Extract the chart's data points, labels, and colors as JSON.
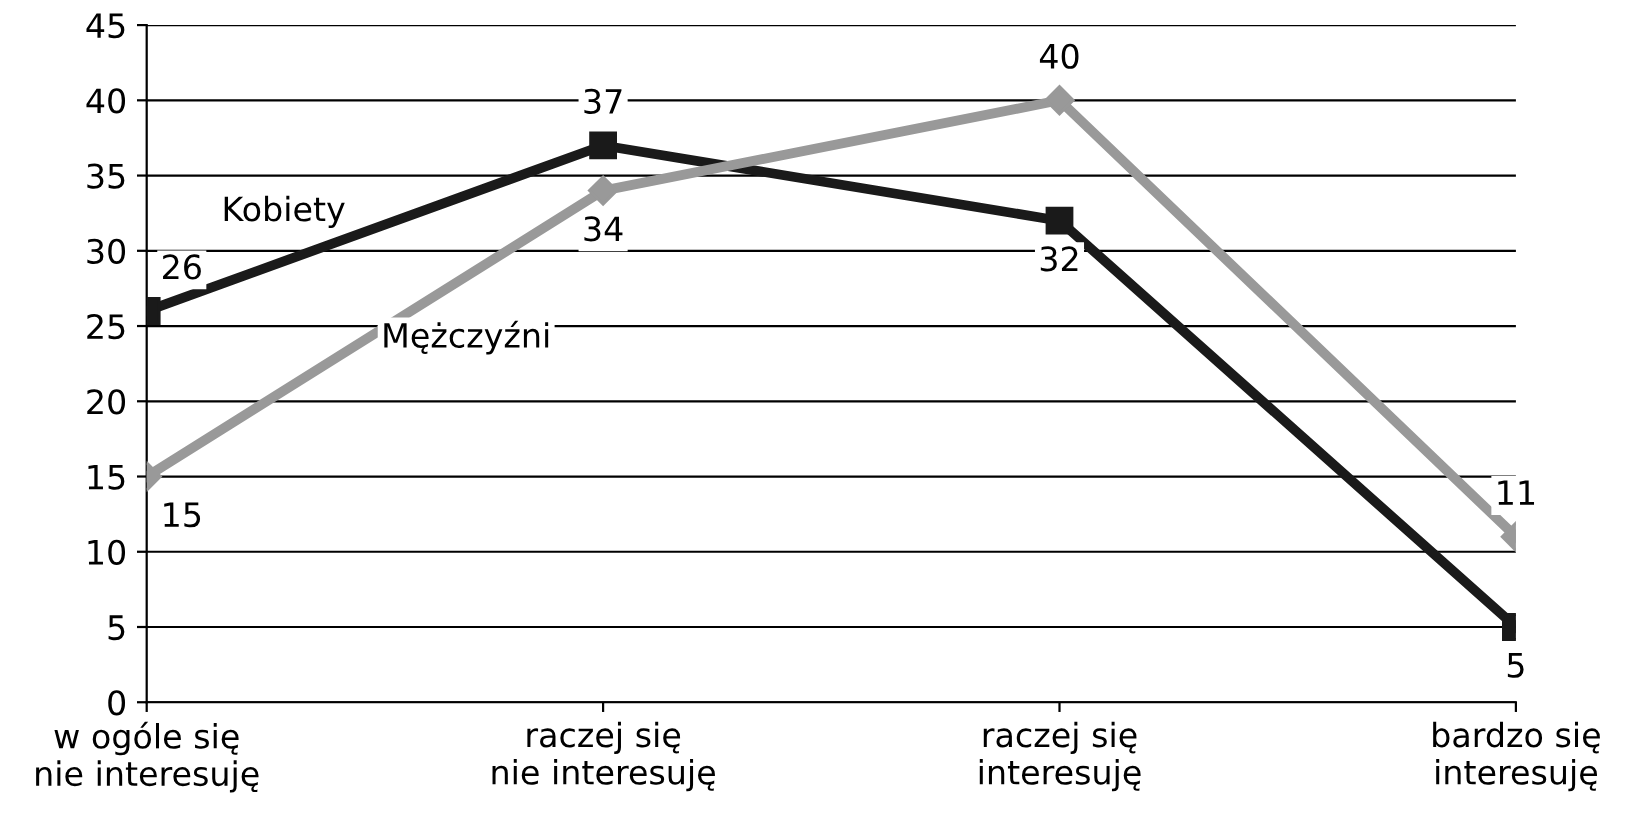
{
  "chart_data": {
    "type": "line",
    "categories": [
      "w ogóle się\nnie interesuję",
      "raczej się\nnie interesuję",
      "raczej się\ninteresuję",
      "bardzo się\ninteresuję"
    ],
    "series": [
      {
        "name": "Kobiety",
        "color": "#1a1a1a",
        "marker": "square",
        "values": [
          26,
          37,
          32,
          5
        ]
      },
      {
        "name": "Mężczyźni",
        "color": "#999999",
        "marker": "diamond",
        "values": [
          15,
          34,
          40,
          11
        ]
      }
    ],
    "ylim": [
      0,
      45
    ],
    "yticks": [
      0,
      5,
      10,
      15,
      20,
      25,
      30,
      35,
      40,
      45
    ],
    "grid": "y",
    "data_labels": true,
    "legend": false,
    "line_style": "solid"
  }
}
